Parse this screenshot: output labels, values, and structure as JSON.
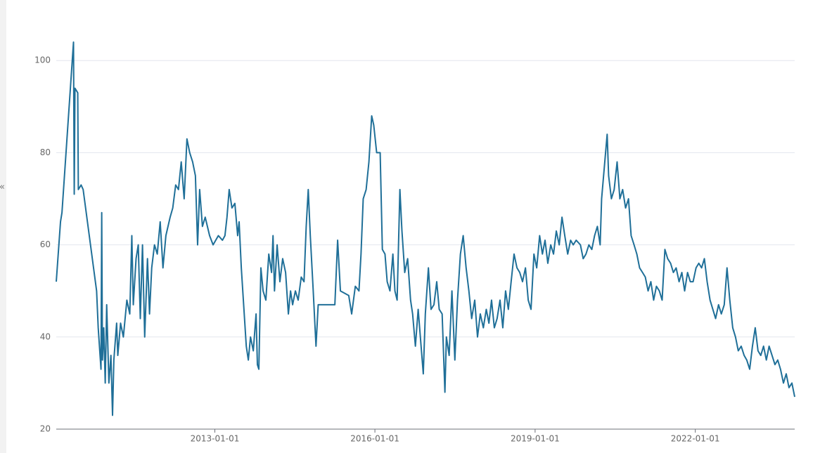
{
  "sidebar": {
    "collapse_icon": "«"
  },
  "chart_data": {
    "type": "line",
    "color": "#1f6f98",
    "grid": true,
    "xlim": [
      "2010-01-12",
      "2023-11-12"
    ],
    "xticks": [
      "2013-01-01",
      "2016-01-01",
      "2019-01-01",
      "2022-01-01"
    ],
    "ylim": [
      20,
      104
    ],
    "yticks": [
      20,
      40,
      60,
      80,
      100
    ],
    "x": [
      "2010-01-12",
      "2010-02-10",
      "2010-02-20",
      "2010-05-10",
      "2010-05-15",
      "2010-05-20",
      "2010-06-08",
      "2010-06-12",
      "2010-07-01",
      "2010-07-15",
      "2010-10-15",
      "2010-10-26",
      "2010-11-14",
      "2010-11-19",
      "2010-11-24",
      "2010-12-03",
      "2010-12-13",
      "2010-12-23",
      "2011-01-07",
      "2011-01-21",
      "2011-02-01",
      "2011-02-10",
      "2011-03-01",
      "2011-03-09",
      "2011-03-28",
      "2011-04-16",
      "2011-05-10",
      "2011-05-30",
      "2011-06-13",
      "2011-06-23",
      "2011-07-12",
      "2011-07-27",
      "2011-08-10",
      "2011-08-25",
      "2011-09-09",
      "2011-09-28",
      "2011-10-12",
      "2011-10-27",
      "2011-11-15",
      "2011-12-04",
      "2011-12-24",
      "2012-01-12",
      "2012-02-01",
      "2012-03-01",
      "2012-03-19",
      "2012-04-08",
      "2012-04-27",
      "2012-05-16",
      "2012-06-05",
      "2012-06-24",
      "2012-07-13",
      "2012-08-02",
      "2012-08-21",
      "2012-09-05",
      "2012-09-19",
      "2012-10-08",
      "2012-10-27",
      "2012-11-26",
      "2012-12-20",
      "2013-01-25",
      "2013-02-22",
      "2013-03-11",
      "2013-03-25",
      "2013-04-09",
      "2013-04-28",
      "2013-05-18",
      "2013-06-06",
      "2013-06-16",
      "2013-07-01",
      "2013-07-15",
      "2013-08-04",
      "2013-08-18",
      "2013-09-02",
      "2013-09-21",
      "2013-10-10",
      "2013-10-19",
      "2013-10-29",
      "2013-11-12",
      "2013-11-27",
      "2013-12-16",
      "2014-01-05",
      "2014-01-24",
      "2014-02-03",
      "2014-02-13",
      "2014-03-03",
      "2014-03-22",
      "2014-04-10",
      "2014-04-30",
      "2014-05-19",
      "2014-06-03",
      "2014-06-17",
      "2014-07-06",
      "2014-07-25",
      "2014-08-15",
      "2014-09-03",
      "2014-09-18",
      "2014-10-02",
      "2014-10-16",
      "2014-11-05",
      "2014-11-24",
      "2014-12-09",
      "2015-04-02",
      "2015-04-21",
      "2015-05-10",
      "2015-07-06",
      "2015-07-26",
      "2015-08-20",
      "2015-09-14",
      "2015-09-28",
      "2015-10-13",
      "2015-11-02",
      "2015-11-21",
      "2015-12-10",
      "2015-12-24",
      "2016-01-13",
      "2016-02-06",
      "2016-02-21",
      "2016-03-10",
      "2016-03-25",
      "2016-04-13",
      "2016-05-03",
      "2016-05-17",
      "2016-06-01",
      "2016-06-20",
      "2016-07-04",
      "2016-07-23",
      "2016-08-12",
      "2016-09-01",
      "2016-09-15",
      "2016-10-04",
      "2016-10-23",
      "2016-11-12",
      "2016-11-27",
      "2016-12-11",
      "2017-01-01",
      "2017-01-19",
      "2017-02-08",
      "2017-02-27",
      "2017-03-16",
      "2017-04-05",
      "2017-04-24",
      "2017-05-04",
      "2017-05-23",
      "2017-06-11",
      "2017-07-01",
      "2017-07-19",
      "2017-08-08",
      "2017-08-27",
      "2017-09-16",
      "2017-10-05",
      "2017-10-24",
      "2017-11-14",
      "2017-12-03",
      "2017-12-22",
      "2018-01-12",
      "2018-02-01",
      "2018-02-19",
      "2018-03-09",
      "2018-03-28",
      "2018-04-16",
      "2018-05-06",
      "2018-05-25",
      "2018-06-13",
      "2018-07-02",
      "2018-07-21",
      "2018-08-10",
      "2018-08-30",
      "2018-09-18",
      "2018-10-07",
      "2018-10-27",
      "2018-11-15",
      "2018-12-04",
      "2018-12-24",
      "2019-01-12",
      "2019-02-01",
      "2019-02-20",
      "2019-03-10",
      "2019-03-29",
      "2019-04-18",
      "2019-05-07",
      "2019-05-26",
      "2019-06-15",
      "2019-07-04",
      "2019-07-23",
      "2019-08-12",
      "2019-09-01",
      "2019-09-19",
      "2019-10-09",
      "2019-11-07",
      "2019-11-26",
      "2019-12-15",
      "2020-01-04",
      "2020-01-24",
      "2020-02-12",
      "2020-03-02",
      "2020-03-21",
      "2020-03-31",
      "2020-04-19",
      "2020-05-08",
      "2020-05-18",
      "2020-06-06",
      "2020-06-25",
      "2020-07-15",
      "2020-08-03",
      "2020-08-22",
      "2020-09-11",
      "2020-10-01",
      "2020-10-19",
      "2020-11-08",
      "2020-11-27",
      "2020-12-16",
      "2021-01-05",
      "2021-01-24",
      "2021-02-12",
      "2021-03-03",
      "2021-03-22",
      "2021-04-10",
      "2021-04-30",
      "2021-05-19",
      "2021-06-07",
      "2021-06-26",
      "2021-07-16",
      "2021-08-04",
      "2021-08-23",
      "2021-09-12",
      "2021-10-01",
      "2021-10-20",
      "2021-11-09",
      "2021-11-28",
      "2021-12-17",
      "2022-01-06",
      "2022-01-25",
      "2022-02-13",
      "2022-03-04",
      "2022-03-23",
      "2022-04-12",
      "2022-05-01",
      "2022-05-20",
      "2022-06-09",
      "2022-06-28",
      "2022-07-18",
      "2022-08-06",
      "2022-08-25",
      "2022-09-14",
      "2022-10-03",
      "2022-10-22",
      "2022-11-11",
      "2022-12-01",
      "2022-12-19",
      "2023-01-08",
      "2023-01-27",
      "2023-02-15",
      "2023-03-06",
      "2023-03-25",
      "2023-04-13",
      "2023-05-02",
      "2023-05-21",
      "2023-06-10",
      "2023-06-30",
      "2023-07-19",
      "2023-08-07",
      "2023-08-27",
      "2023-09-15",
      "2023-10-04",
      "2023-10-24",
      "2023-11-12"
    ],
    "values": [
      52,
      65,
      67,
      104,
      71,
      94,
      93,
      72,
      73,
      72,
      50,
      42,
      33,
      67,
      35,
      42,
      30,
      47,
      30,
      36,
      23,
      35,
      43,
      36,
      43,
      40,
      48,
      45,
      62,
      47,
      57,
      60,
      44,
      60,
      40,
      57,
      45,
      55,
      60,
      58,
      65,
      55,
      62,
      66,
      68,
      73,
      72,
      78,
      70,
      83,
      80,
      78,
      75,
      60,
      72,
      64,
      66,
      62,
      60,
      62,
      61,
      62,
      66,
      72,
      68,
      69,
      62,
      65,
      55,
      48,
      38,
      35,
      40,
      37,
      45,
      34,
      33,
      55,
      50,
      48,
      58,
      54,
      62,
      50,
      60,
      52,
      57,
      54,
      45,
      50,
      47,
      50,
      48,
      53,
      52,
      64,
      72,
      62,
      50,
      38,
      47,
      47,
      61,
      50,
      49,
      45,
      51,
      50,
      58,
      70,
      72,
      78,
      88,
      86,
      80,
      80,
      59,
      58,
      52,
      50,
      58,
      50,
      48,
      72,
      63,
      54,
      57,
      48,
      45,
      38,
      46,
      38,
      32,
      45,
      55,
      46,
      47,
      52,
      46,
      45,
      28,
      40,
      36,
      50,
      35,
      48,
      58,
      62,
      55,
      50,
      44,
      48,
      40,
      45,
      42,
      46,
      43,
      48,
      42,
      44,
      48,
      42,
      50,
      46,
      52,
      58,
      55,
      54,
      52,
      55,
      48,
      46,
      58,
      55,
      62,
      58,
      61,
      56,
      60,
      58,
      63,
      60,
      66,
      62,
      58,
      61,
      60,
      61,
      60,
      57,
      58,
      60,
      59,
      62,
      64,
      60,
      70,
      77,
      84,
      75,
      70,
      72,
      78,
      70,
      72,
      68,
      70,
      62,
      60,
      58,
      55,
      54,
      53,
      50,
      52,
      48,
      51,
      50,
      48,
      59,
      57,
      56,
      54,
      55,
      52,
      54,
      50,
      54,
      52,
      52,
      55,
      56,
      55,
      57,
      52,
      48,
      46,
      44,
      47,
      45,
      47,
      55,
      48,
      42,
      40,
      37,
      38,
      36,
      35,
      33,
      38,
      42,
      37,
      36,
      38,
      35,
      38,
      36,
      34,
      35,
      33,
      30,
      32,
      29,
      30,
      27
    ]
  }
}
